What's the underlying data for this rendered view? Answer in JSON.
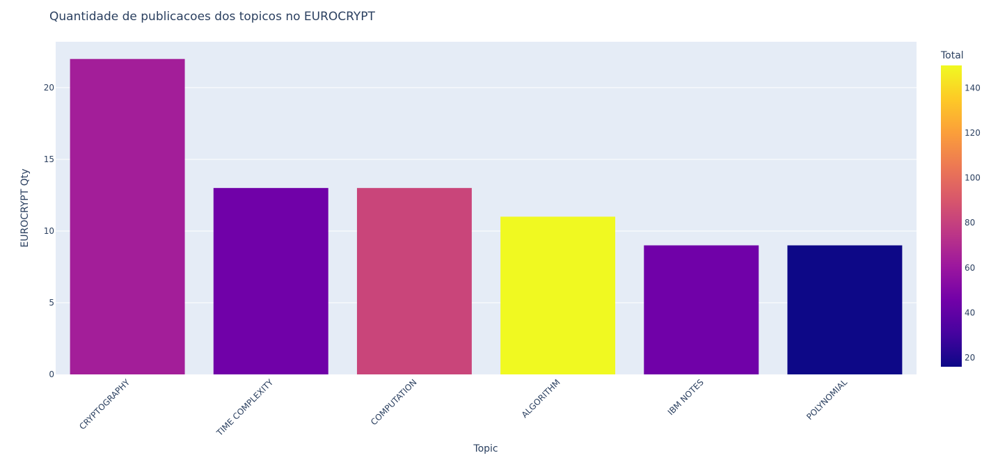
{
  "chart_data": {
    "type": "bar",
    "title": "Quantidade de publicacoes dos topicos no EUROCRYPT",
    "xlabel": "Topic",
    "ylabel": "EUROCRYPT  Qty",
    "categories": [
      "CRYPTOGRAPHY",
      "TIME COMPLEXITY",
      "COMPUTATION",
      "ALGORITHM",
      "IBM NOTES",
      "POLYNOMIAL"
    ],
    "values": [
      22,
      13,
      13,
      11,
      9,
      9
    ],
    "color_values": [
      64,
      45,
      82,
      150,
      45,
      16
    ],
    "ylim": [
      0,
      23.2
    ],
    "yticks": [
      0,
      5,
      10,
      15,
      20
    ],
    "grid": true,
    "colorbar": {
      "title": "Total",
      "range": [
        16,
        150
      ],
      "ticks": [
        20,
        40,
        60,
        80,
        100,
        120,
        140
      ],
      "colorscale": [
        "#0d0887",
        "#46039f",
        "#7201a8",
        "#9c179e",
        "#bd3786",
        "#d8576b",
        "#ed7953",
        "#fb9f3a",
        "#fdca26",
        "#f0f921"
      ]
    },
    "colors": {
      "plot_bg": "#e5ecf6",
      "grid": "#ffffff",
      "text": "#2a3f5f"
    }
  }
}
